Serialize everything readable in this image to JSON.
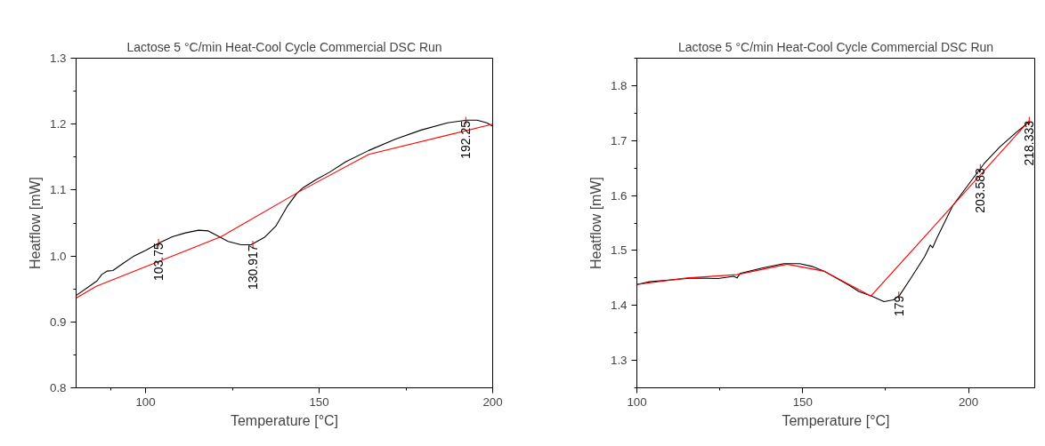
{
  "chart_data": [
    {
      "type": "line",
      "title": "Lactose 5 °C/min Heat-Cool Cycle Commercial DSC Run",
      "xlabel": "Temperature [°C]",
      "ylabel": "Heatflow [mW]",
      "xlim": [
        80,
        200
      ],
      "ylim": [
        0.8,
        1.3
      ],
      "xticks": [
        {
          "value": 90,
          "label": null
        },
        100,
        {
          "value": 125,
          "label": null
        },
        150,
        {
          "value": 175,
          "label": null
        },
        200
      ],
      "yticks": [
        0.8,
        {
          "value": 0.85,
          "label": null
        },
        0.9,
        {
          "value": 0.95,
          "label": null
        },
        "1.0",
        {
          "value": 1.05,
          "label": null
        },
        1.1,
        {
          "value": 1.15,
          "label": null
        },
        1.2,
        {
          "value": 1.25,
          "label": null
        },
        1.3
      ],
      "grid": false,
      "marker": "none",
      "line_style": "solid",
      "series": [
        {
          "color": "#000000",
          "x": [
            80,
            86,
            87.4,
            88.9,
            90.6,
            93.6,
            96.4,
            100.2,
            104,
            107.7,
            111.5,
            115.3,
            118.1,
            120.9,
            123.8,
            127.5,
            130.4,
            134.2,
            137.5,
            140.8,
            143.6,
            145.5,
            149.2,
            153,
            157.7,
            164.3,
            171.9,
            179.4,
            187,
            192.6,
            195.5,
            198.3,
            200
          ],
          "values": [
            0.94,
            0.962,
            0.972,
            0.977,
            0.978,
            0.989,
            0.999,
            1.009,
            1.02,
            1.029,
            1.035,
            1.039,
            1.038,
            1.03,
            1.022,
            1.017,
            1.017,
            1.028,
            1.045,
            1.075,
            1.095,
            1.104,
            1.116,
            1.127,
            1.143,
            1.16,
            1.177,
            1.191,
            1.202,
            1.206,
            1.206,
            1.202,
            1.197
          ]
        },
        {
          "color": "#ff0000",
          "x": [
            80,
            85.8,
            121.7,
            144.1,
            164.3,
            200
          ],
          "values": [
            0.936,
            0.954,
            1.029,
            1.097,
            1.154,
            1.2
          ]
        }
      ],
      "annotations": [
        {
          "text": "103.75",
          "x": 103.75,
          "y": 1.02
        },
        {
          "text": "130.917",
          "x": 130.917,
          "y": 1.017
        },
        {
          "text": "192.25",
          "x": 192.25,
          "y": 1.205
        }
      ]
    },
    {
      "type": "line",
      "title": "Lactose 5 °C/min Heat-Cool Cycle Commercial DSC Run",
      "xlabel": "Temperature [°C]",
      "ylabel": "Heatflow [mW]",
      "xlim": [
        100,
        220
      ],
      "ylim": [
        1.25,
        1.85
      ],
      "xticks": [
        100,
        {
          "value": 125,
          "label": null
        },
        150,
        {
          "value": 175,
          "label": null
        },
        200
      ],
      "yticks": [
        {
          "value": 1.25,
          "label": null
        },
        1.3,
        {
          "value": 1.35,
          "label": null
        },
        1.4,
        {
          "value": 1.45,
          "label": null
        },
        1.5,
        {
          "value": 1.55,
          "label": null
        },
        1.6,
        {
          "value": 1.65,
          "label": null
        },
        1.7,
        {
          "value": 1.75,
          "label": null
        },
        1.8,
        {
          "value": 1.85,
          "label": null
        }
      ],
      "grid": false,
      "marker": "none",
      "line_style": "solid",
      "series": [
        {
          "color": "#000000",
          "x": [
            100,
            103.8,
            109.4,
            117,
            124.5,
            129.2,
            130.2,
            131.1,
            137.7,
            144.3,
            149.1,
            152.8,
            156.6,
            160.4,
            164.2,
            167,
            170.8,
            174.5,
            177.4,
            179.2,
            183,
            186.8,
            188.5,
            189.2,
            190.6,
            195.3,
            200,
            204.7,
            209.4,
            214.2,
            218.3
          ],
          "values": [
            1.438,
            1.443,
            1.446,
            1.45,
            1.449,
            1.453,
            1.45,
            1.458,
            1.468,
            1.476,
            1.476,
            1.471,
            1.462,
            1.449,
            1.436,
            1.425,
            1.417,
            1.407,
            1.41,
            1.418,
            1.453,
            1.489,
            1.51,
            1.505,
            1.524,
            1.582,
            1.62,
            1.658,
            1.688,
            1.714,
            1.734
          ]
        },
        {
          "color": "#ff0000",
          "x": [
            100,
            115.1,
            130.2,
            145.3,
            156.6,
            170.6,
            218.333
          ],
          "values": [
            1.438,
            1.45,
            1.456,
            1.475,
            1.462,
            1.417,
            1.736
          ]
        }
      ],
      "annotations": [
        {
          "text": "179",
          "x": 179,
          "y": 1.418
        },
        {
          "text": "203.583",
          "x": 203.583,
          "y": 1.65
        },
        {
          "text": "218.333",
          "x": 218.333,
          "y": 1.736
        }
      ]
    }
  ]
}
